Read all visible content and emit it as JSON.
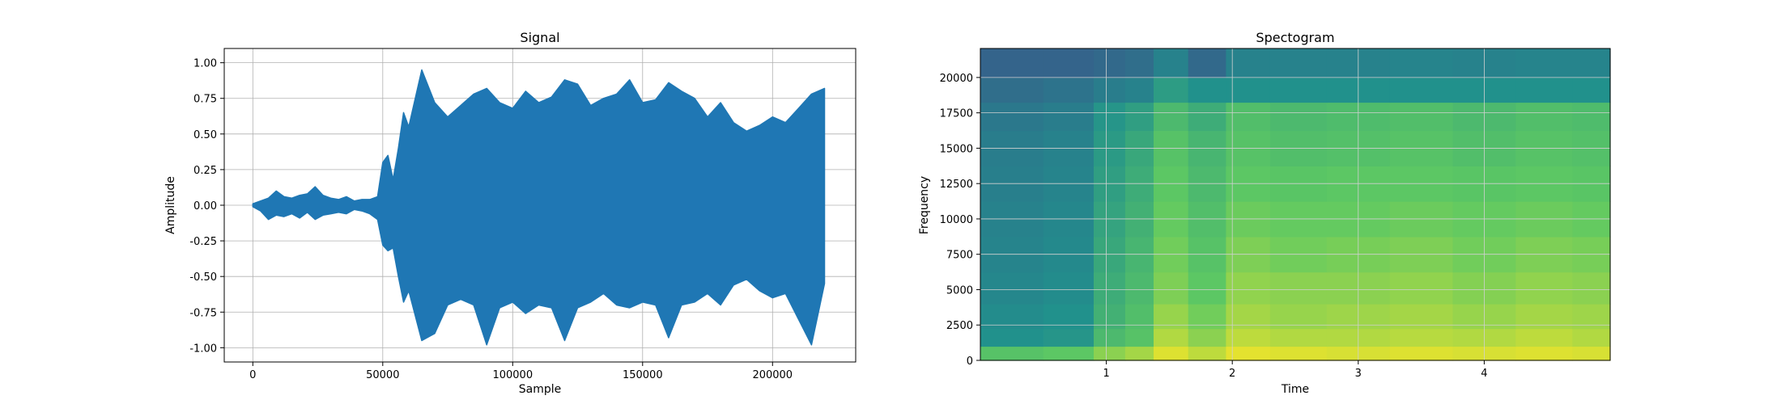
{
  "chart_data": [
    {
      "type": "line",
      "title": "Signal",
      "xlabel": "Sample",
      "ylabel": "Amplitude",
      "xlim": [
        -11000,
        232000
      ],
      "ylim": [
        -1.1,
        1.1
      ],
      "x_ticks": [
        0,
        50000,
        100000,
        150000,
        200000
      ],
      "y_ticks": [
        -1.0,
        -0.75,
        -0.5,
        -0.25,
        0.0,
        0.25,
        0.5,
        0.75,
        1.0
      ],
      "grid": true,
      "color": "#1f77b4",
      "series": [
        {
          "x": [
            0,
            3000,
            6000,
            9000,
            12000,
            15000,
            18000,
            21000,
            24000,
            27000,
            30000,
            33000,
            36000,
            39000,
            42000,
            45000,
            48000,
            50000,
            52000,
            54000,
            56000,
            58000,
            60000,
            65000,
            70000,
            75000,
            80000,
            85000,
            90000,
            95000,
            100000,
            105000,
            110000,
            115000,
            120000,
            125000,
            130000,
            135000,
            140000,
            145000,
            150000,
            155000,
            160000,
            165000,
            170000,
            175000,
            180000,
            185000,
            190000,
            195000,
            200000,
            205000,
            210000,
            215000,
            220000
          ],
          "y_max": [
            0.01,
            0.03,
            0.05,
            0.1,
            0.06,
            0.05,
            0.07,
            0.08,
            0.13,
            0.07,
            0.05,
            0.04,
            0.06,
            0.03,
            0.04,
            0.04,
            0.06,
            0.3,
            0.35,
            0.18,
            0.4,
            0.65,
            0.55,
            0.95,
            0.72,
            0.62,
            0.7,
            0.78,
            0.82,
            0.72,
            0.68,
            0.8,
            0.72,
            0.76,
            0.88,
            0.85,
            0.7,
            0.75,
            0.78,
            0.88,
            0.72,
            0.74,
            0.86,
            0.8,
            0.75,
            0.62,
            0.72,
            0.58,
            0.52,
            0.56,
            0.62,
            0.58,
            0.68,
            0.78,
            0.82
          ],
          "y_min": [
            -0.01,
            -0.04,
            -0.1,
            -0.07,
            -0.08,
            -0.06,
            -0.09,
            -0.05,
            -0.1,
            -0.07,
            -0.06,
            -0.05,
            -0.06,
            -0.03,
            -0.04,
            -0.06,
            -0.1,
            -0.28,
            -0.32,
            -0.3,
            -0.5,
            -0.68,
            -0.6,
            -0.95,
            -0.9,
            -0.7,
            -0.66,
            -0.7,
            -0.98,
            -0.72,
            -0.68,
            -0.76,
            -0.7,
            -0.72,
            -0.95,
            -0.72,
            -0.68,
            -0.62,
            -0.7,
            -0.72,
            -0.68,
            -0.7,
            -0.93,
            -0.7,
            -0.68,
            -0.62,
            -0.7,
            -0.56,
            -0.52,
            -0.6,
            -0.65,
            -0.62,
            -0.8,
            -0.98,
            -0.55
          ]
        }
      ]
    },
    {
      "type": "heatmap",
      "title": "Spectogram",
      "xlabel": "Time",
      "ylabel": "Frequency",
      "xlim": [
        0,
        5
      ],
      "ylim": [
        0,
        22050
      ],
      "x_ticks": [
        1,
        2,
        3,
        4
      ],
      "y_ticks": [
        0,
        2500,
        5000,
        7500,
        10000,
        12500,
        15000,
        17500,
        20000
      ],
      "grid": true,
      "colormap": "viridis",
      "time_bins": [
        0.25,
        0.75,
        1.05,
        1.25,
        1.5,
        1.8,
        2.1,
        2.5,
        3.0,
        3.5,
        4.0,
        4.5,
        4.9
      ],
      "freq_bins": [
        500,
        1500,
        3000,
        5000,
        7500,
        10000,
        12500,
        15000,
        17500,
        19000,
        21000
      ],
      "intensity": [
        [
          0.72,
          0.74,
          0.82,
          0.86,
          0.95,
          0.9,
          0.96,
          0.95,
          0.94,
          0.95,
          0.94,
          0.95,
          0.94
        ],
        [
          0.5,
          0.52,
          0.68,
          0.72,
          0.88,
          0.82,
          0.9,
          0.88,
          0.88,
          0.89,
          0.88,
          0.9,
          0.88
        ],
        [
          0.48,
          0.5,
          0.64,
          0.7,
          0.84,
          0.78,
          0.86,
          0.84,
          0.85,
          0.86,
          0.84,
          0.86,
          0.85
        ],
        [
          0.46,
          0.48,
          0.62,
          0.68,
          0.8,
          0.74,
          0.83,
          0.82,
          0.82,
          0.83,
          0.81,
          0.83,
          0.82
        ],
        [
          0.45,
          0.47,
          0.6,
          0.66,
          0.78,
          0.72,
          0.8,
          0.78,
          0.79,
          0.8,
          0.78,
          0.8,
          0.79
        ],
        [
          0.44,
          0.46,
          0.58,
          0.64,
          0.76,
          0.7,
          0.77,
          0.76,
          0.76,
          0.77,
          0.76,
          0.77,
          0.76
        ],
        [
          0.43,
          0.45,
          0.56,
          0.62,
          0.74,
          0.68,
          0.74,
          0.73,
          0.74,
          0.74,
          0.73,
          0.74,
          0.73
        ],
        [
          0.42,
          0.44,
          0.54,
          0.6,
          0.72,
          0.66,
          0.72,
          0.7,
          0.71,
          0.72,
          0.7,
          0.72,
          0.71
        ],
        [
          0.4,
          0.42,
          0.52,
          0.56,
          0.68,
          0.62,
          0.7,
          0.68,
          0.69,
          0.7,
          0.68,
          0.7,
          0.69
        ],
        [
          0.36,
          0.38,
          0.42,
          0.44,
          0.55,
          0.5,
          0.5,
          0.5,
          0.5,
          0.5,
          0.5,
          0.5,
          0.5
        ],
        [
          0.32,
          0.32,
          0.34,
          0.36,
          0.44,
          0.34,
          0.44,
          0.44,
          0.44,
          0.45,
          0.44,
          0.45,
          0.45
        ]
      ]
    }
  ]
}
